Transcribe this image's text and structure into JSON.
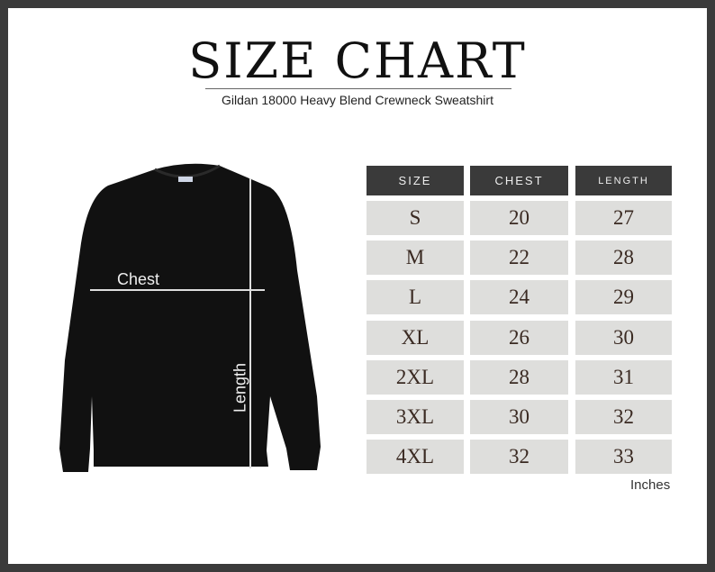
{
  "title": "SIZE CHART",
  "subtitle": "Gildan 18000 Heavy Blend Crewneck Sweatshirt",
  "diagram": {
    "chest_label": "Chest",
    "length_label": "Length"
  },
  "table": {
    "headers": [
      "SIZE",
      "CHEST",
      "LENGTH"
    ],
    "rows": [
      [
        "S",
        "20",
        "27"
      ],
      [
        "M",
        "22",
        "28"
      ],
      [
        "L",
        "24",
        "29"
      ],
      [
        "XL",
        "26",
        "30"
      ],
      [
        "2XL",
        "28",
        "31"
      ],
      [
        "3XL",
        "30",
        "32"
      ],
      [
        "4XL",
        "32",
        "33"
      ]
    ],
    "unit": "Inches"
  },
  "colors": {
    "frame": "#3b3b3b",
    "header_bg": "#3a3a3a",
    "cell_bg": "#dededc",
    "garment": "#111111"
  }
}
